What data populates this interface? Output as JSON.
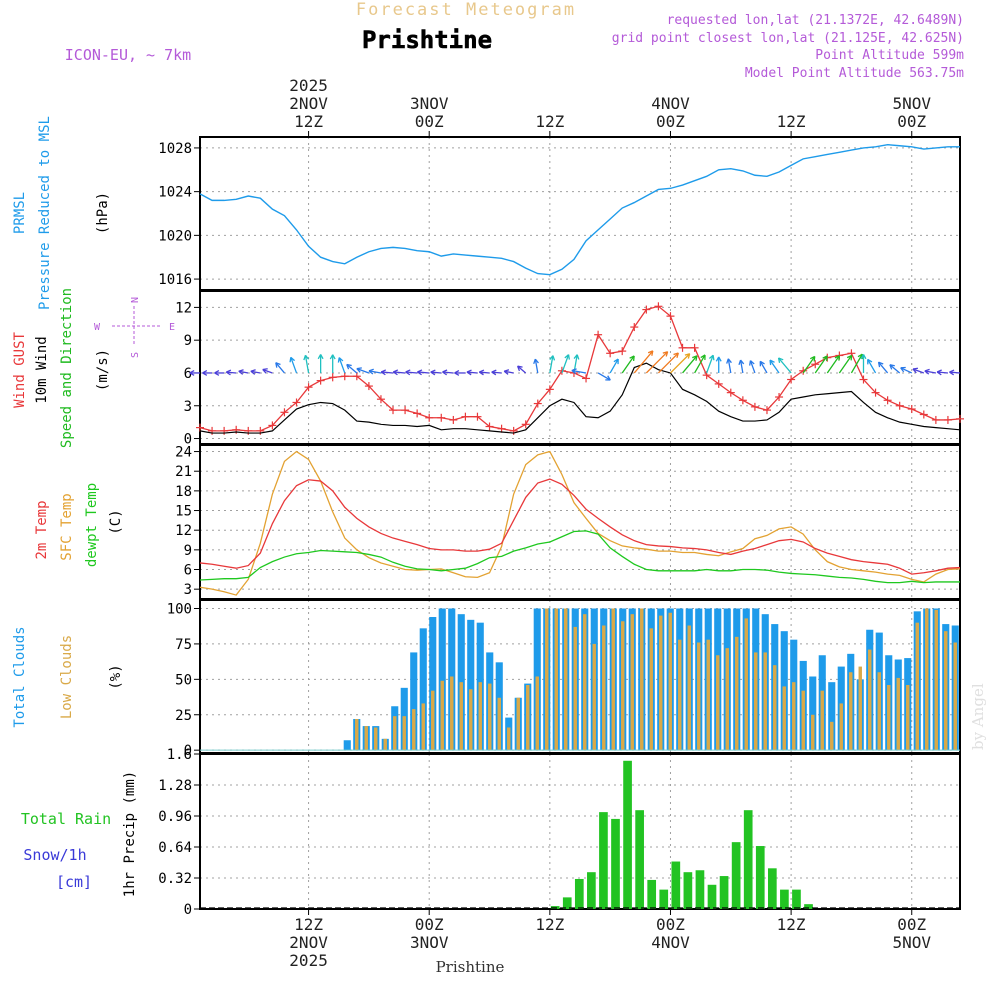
{
  "header": {
    "top_title": "Forecast Meteogram",
    "location": "Prishtine",
    "model": "ICON-EU, ~ 7km",
    "requested": "requested lon,lat (21.1372E, 42.6489N)",
    "grid_point": "grid point closest lon,lat (21.125E, 42.625N)",
    "point_altitude": "Point Altitude 599m",
    "model_altitude": "Model Point Altitude 563.75m",
    "watermark": "by Angel",
    "bottom_location": "Prishtine"
  },
  "time_axis": {
    "start_hour": 0,
    "end_hour": 63,
    "top_labels": [
      {
        "hour": 9,
        "lines": [
          "2025",
          "2NOV",
          "12Z"
        ]
      },
      {
        "hour": 19,
        "lines": [
          "3NOV",
          "00Z"
        ]
      },
      {
        "hour": 29,
        "lines": [
          "12Z"
        ]
      },
      {
        "hour": 39,
        "lines": [
          "4NOV",
          "00Z"
        ]
      },
      {
        "hour": 49,
        "lines": [
          "12Z"
        ]
      },
      {
        "hour": 59,
        "lines": [
          "5NOV",
          "00Z"
        ]
      }
    ],
    "bottom_labels": [
      {
        "hour": 9,
        "lines": [
          "12Z",
          "2NOV",
          "2025"
        ]
      },
      {
        "hour": 19,
        "lines": [
          "00Z",
          "3NOV"
        ]
      },
      {
        "hour": 29,
        "lines": [
          "12Z"
        ]
      },
      {
        "hour": 39,
        "lines": [
          "00Z",
          "4NOV"
        ]
      },
      {
        "hour": 49,
        "lines": [
          "12Z"
        ]
      },
      {
        "hour": 59,
        "lines": [
          "00Z",
          "5NOV"
        ]
      }
    ]
  },
  "colors": {
    "pressure": "#1e9bea",
    "gust": "#e8383a",
    "wind": "#000000",
    "dir": "#1fba1f",
    "temp2m": "#e8383a",
    "sfc": "#e3a232",
    "dewpt": "#1fc81f",
    "total_cloud": "#1e9bea",
    "low_cloud": "#d9a948",
    "rain": "#22c322",
    "snow": "#3a3ad8",
    "grid": "#a0a0a0",
    "purple": "#b45ad8",
    "title_orange": "#e8c88c"
  },
  "chart_data": [
    {
      "type": "line",
      "panel": "pressure",
      "ylabels": [
        "PRMSL",
        "Pressure Reduced to MSL",
        "(hPa)"
      ],
      "ylim": [
        1015,
        1029
      ],
      "yticks": [
        1016,
        1020,
        1024,
        1028
      ],
      "series": [
        {
          "name": "PRMSL",
          "x": [
            0,
            1,
            2,
            3,
            4,
            5,
            6,
            7,
            8,
            9,
            10,
            11,
            12,
            13,
            14,
            15,
            16,
            17,
            18,
            19,
            20,
            21,
            22,
            23,
            24,
            25,
            26,
            27,
            28,
            29,
            30,
            31,
            32,
            33,
            34,
            35,
            36,
            37,
            38,
            39,
            40,
            41,
            42,
            43,
            44,
            45,
            46,
            47,
            48,
            49,
            50,
            51,
            52,
            53,
            54,
            55,
            56,
            57,
            58,
            59,
            60,
            61,
            62,
            63
          ],
          "values": [
            1023.8,
            1023.2,
            1023.2,
            1023.3,
            1023.6,
            1023.4,
            1022.4,
            1021.8,
            1020.5,
            1019.0,
            1018.0,
            1017.6,
            1017.4,
            1018.0,
            1018.5,
            1018.8,
            1018.9,
            1018.8,
            1018.6,
            1018.5,
            1018.1,
            1018.3,
            1018.2,
            1018.1,
            1018.0,
            1017.9,
            1017.6,
            1017.0,
            1016.5,
            1016.4,
            1016.9,
            1017.8,
            1019.5,
            1020.5,
            1021.5,
            1022.5,
            1023.0,
            1023.6,
            1024.2,
            1024.3,
            1024.6,
            1025.0,
            1025.4,
            1026.0,
            1026.1,
            1025.9,
            1025.5,
            1025.4,
            1025.8,
            1026.4,
            1027.0,
            1027.2,
            1027.4,
            1027.6,
            1027.8,
            1028.0,
            1028.1,
            1028.3,
            1028.2,
            1028.1,
            1027.9,
            1028.0,
            1028.1,
            1028.1
          ]
        }
      ]
    },
    {
      "type": "line",
      "panel": "wind",
      "ylabels": [
        "Wind GUST",
        "10m Wind",
        "Speed and Direction",
        "(m/s)"
      ],
      "compass": {
        "n": "N",
        "s": "S",
        "w": "W",
        "e": "E"
      },
      "ylim": [
        -0.5,
        13.5
      ],
      "yticks": [
        0,
        3,
        6,
        9,
        12
      ],
      "arrow_baseline": 6.0,
      "series": [
        {
          "name": "Wind GUST",
          "values": [
            1.0,
            0.7,
            0.7,
            0.8,
            0.7,
            0.7,
            1.2,
            2.4,
            3.3,
            4.7,
            5.3,
            5.6,
            5.7,
            5.7,
            4.8,
            3.6,
            2.6,
            2.6,
            2.3,
            1.9,
            1.9,
            1.7,
            2.0,
            2.0,
            1.1,
            0.9,
            0.7,
            1.3,
            3.2,
            4.5,
            6.2,
            6.0,
            5.5,
            9.5,
            7.8,
            8.0,
            10.2,
            11.8,
            12.1,
            11.2,
            8.3,
            8.3,
            5.8,
            5.0,
            4.2,
            3.5,
            2.9,
            2.6,
            3.8,
            5.4,
            6.2,
            6.8,
            7.4,
            7.6,
            7.8,
            5.4,
            4.2,
            3.5,
            3.0,
            2.7,
            2.2,
            1.7,
            1.7,
            1.8
          ]
        },
        {
          "name": "10m Wind",
          "values": [
            0.7,
            0.5,
            0.5,
            0.6,
            0.5,
            0.5,
            0.7,
            1.7,
            2.7,
            3.1,
            3.3,
            3.2,
            2.6,
            1.6,
            1.5,
            1.3,
            1.2,
            1.2,
            1.1,
            1.2,
            0.8,
            0.9,
            0.9,
            0.8,
            0.7,
            0.6,
            0.5,
            0.8,
            1.9,
            3.0,
            3.6,
            3.3,
            2.0,
            1.9,
            2.5,
            4.0,
            6.5,
            6.9,
            6.3,
            6.0,
            4.5,
            4.0,
            3.4,
            2.5,
            2.0,
            1.6,
            1.6,
            1.7,
            2.4,
            3.6,
            3.8,
            4.0,
            4.1,
            4.2,
            4.3,
            3.3,
            2.4,
            1.9,
            1.5,
            1.3,
            1.1,
            1.0,
            0.9,
            0.8
          ]
        },
        {
          "name": "Direction arrows (degrees from which wind blows)",
          "values": [
            90,
            90,
            90,
            95,
            100,
            100,
            110,
            140,
            160,
            170,
            180,
            180,
            160,
            130,
            110,
            100,
            95,
            95,
            95,
            95,
            95,
            95,
            90,
            95,
            95,
            95,
            100,
            130,
            170,
            190,
            200,
            190,
            100,
            300,
            210,
            215,
            220,
            225,
            225,
            225,
            220,
            210,
            200,
            180,
            170,
            170,
            160,
            150,
            145,
            140,
            215,
            215,
            215,
            215,
            210,
            180,
            150,
            140,
            130,
            115,
            110,
            100,
            95,
            95
          ]
        }
      ]
    },
    {
      "type": "line",
      "panel": "temperature",
      "ylabels": [
        "2m Temp",
        "SFC Temp",
        "dewpt Temp",
        "(C)"
      ],
      "ylim": [
        1.5,
        25
      ],
      "yticks": [
        3,
        6,
        9,
        12,
        15,
        18,
        21,
        24
      ],
      "series": [
        {
          "name": "2m Temp",
          "values": [
            7.0,
            6.8,
            6.5,
            6.2,
            6.6,
            8.5,
            13.0,
            16.5,
            18.8,
            19.7,
            19.5,
            18.0,
            15.5,
            13.8,
            12.5,
            11.5,
            10.8,
            10.3,
            9.8,
            9.2,
            9.0,
            9.0,
            8.8,
            8.8,
            9.1,
            10.0,
            13.5,
            17.0,
            19.2,
            19.8,
            19.0,
            17.3,
            15.2,
            13.8,
            12.5,
            11.3,
            10.4,
            9.8,
            9.6,
            9.5,
            9.3,
            9.2,
            9.0,
            8.6,
            8.3,
            8.8,
            9.2,
            9.8,
            10.4,
            10.6,
            10.2,
            9.2,
            8.5,
            8.0,
            7.5,
            7.2,
            7.0,
            6.8,
            6.2,
            5.3,
            5.5,
            5.8,
            6.2,
            6.3
          ]
        },
        {
          "name": "SFC Temp",
          "values": [
            3.3,
            3.0,
            2.6,
            2.1,
            4.5,
            10.0,
            17.5,
            22.5,
            24.0,
            22.8,
            19.5,
            14.8,
            10.8,
            9.0,
            7.8,
            7.0,
            6.5,
            6.0,
            5.9,
            6.0,
            6.1,
            5.5,
            4.9,
            4.8,
            5.5,
            9.5,
            17.5,
            22.0,
            23.5,
            24.0,
            20.5,
            16.2,
            13.8,
            11.5,
            10.4,
            9.6,
            9.3,
            9.1,
            8.8,
            8.8,
            8.6,
            8.6,
            8.3,
            8.1,
            8.7,
            9.2,
            10.7,
            11.2,
            12.2,
            12.5,
            11.4,
            9.0,
            7.2,
            6.4,
            6.0,
            5.8,
            5.6,
            5.3,
            5.1,
            4.5,
            4.1,
            5.3,
            6.0,
            6.1
          ]
        },
        {
          "name": "dewpt Temp",
          "values": [
            4.4,
            4.5,
            4.6,
            4.6,
            4.8,
            6.3,
            7.2,
            7.9,
            8.4,
            8.6,
            8.9,
            8.8,
            8.7,
            8.6,
            8.3,
            7.9,
            7.1,
            6.5,
            6.1,
            6.0,
            5.8,
            6.0,
            6.2,
            6.9,
            7.8,
            8.0,
            8.8,
            9.3,
            9.9,
            10.2,
            11.0,
            11.8,
            11.9,
            11.4,
            9.3,
            8.0,
            6.8,
            6.0,
            5.8,
            5.8,
            5.8,
            5.8,
            6.0,
            5.8,
            5.8,
            6.0,
            6.0,
            5.9,
            5.6,
            5.4,
            5.3,
            5.2,
            5.0,
            4.8,
            4.7,
            4.5,
            4.2,
            4.0,
            4.0,
            4.2,
            4.0,
            4.1,
            4.1,
            4.1
          ]
        }
      ]
    },
    {
      "type": "bar",
      "panel": "clouds",
      "ylabels": [
        "Total Clouds",
        "Low Clouds",
        "(%)"
      ],
      "ylim": [
        -2,
        106
      ],
      "yticks": [
        0,
        25,
        50,
        75,
        100
      ],
      "series": [
        {
          "name": "Total Clouds",
          "values": [
            0,
            0,
            0,
            0,
            0,
            0,
            0,
            0,
            0,
            0,
            0,
            0,
            0,
            0,
            0,
            7,
            22,
            17,
            17,
            8,
            31,
            44,
            69,
            86,
            94,
            100,
            100,
            96,
            92,
            90,
            69,
            62,
            23,
            37,
            47,
            100,
            100,
            100,
            100,
            100,
            100,
            100,
            100,
            100,
            100,
            100,
            100,
            100,
            100,
            100,
            100,
            100,
            100,
            100,
            100,
            100,
            100,
            100,
            100,
            96,
            89,
            84,
            78,
            63,
            52,
            67,
            48,
            59,
            68,
            50,
            85,
            83,
            67,
            64,
            65,
            98,
            100,
            100,
            89,
            88
          ]
        },
        {
          "name": "Low Clouds",
          "values": [
            0,
            0,
            0,
            0,
            0,
            0,
            0,
            0,
            0,
            0,
            0,
            0,
            0,
            0,
            0,
            0,
            22,
            17,
            16,
            8,
            24,
            24,
            29,
            33,
            42,
            49,
            52,
            48,
            43,
            48,
            47,
            37,
            16,
            37,
            46,
            52,
            100,
            100,
            100,
            87,
            96,
            75,
            88,
            100,
            91,
            96,
            100,
            86,
            95,
            97,
            78,
            88,
            76,
            78,
            67,
            72,
            80,
            93,
            69,
            69,
            60,
            45,
            48,
            42,
            25,
            42,
            20,
            33,
            55,
            59,
            71,
            55,
            46,
            51,
            46,
            90,
            100,
            99,
            84,
            76
          ]
        }
      ]
    },
    {
      "type": "bar",
      "panel": "precipitation",
      "ylabels": [
        "Total Rain",
        "Snow/1h",
        "[cm]",
        "1hr Precip (mm)"
      ],
      "ylim": [
        0,
        1.6
      ],
      "yticks": [
        0,
        0.32,
        0.64,
        0.96,
        1.28,
        1.6
      ],
      "series": [
        {
          "name": "1hr Precip",
          "bar_start_hour": 29,
          "values": [
            0.03,
            0.12,
            0.31,
            0.38,
            1.0,
            0.93,
            1.53,
            1.02,
            0.3,
            0.2,
            0.49,
            0.38,
            0.4,
            0.25,
            0.34,
            0.69,
            1.02,
            0.65,
            0.42,
            0.2,
            0.2,
            0.05
          ]
        }
      ]
    }
  ]
}
